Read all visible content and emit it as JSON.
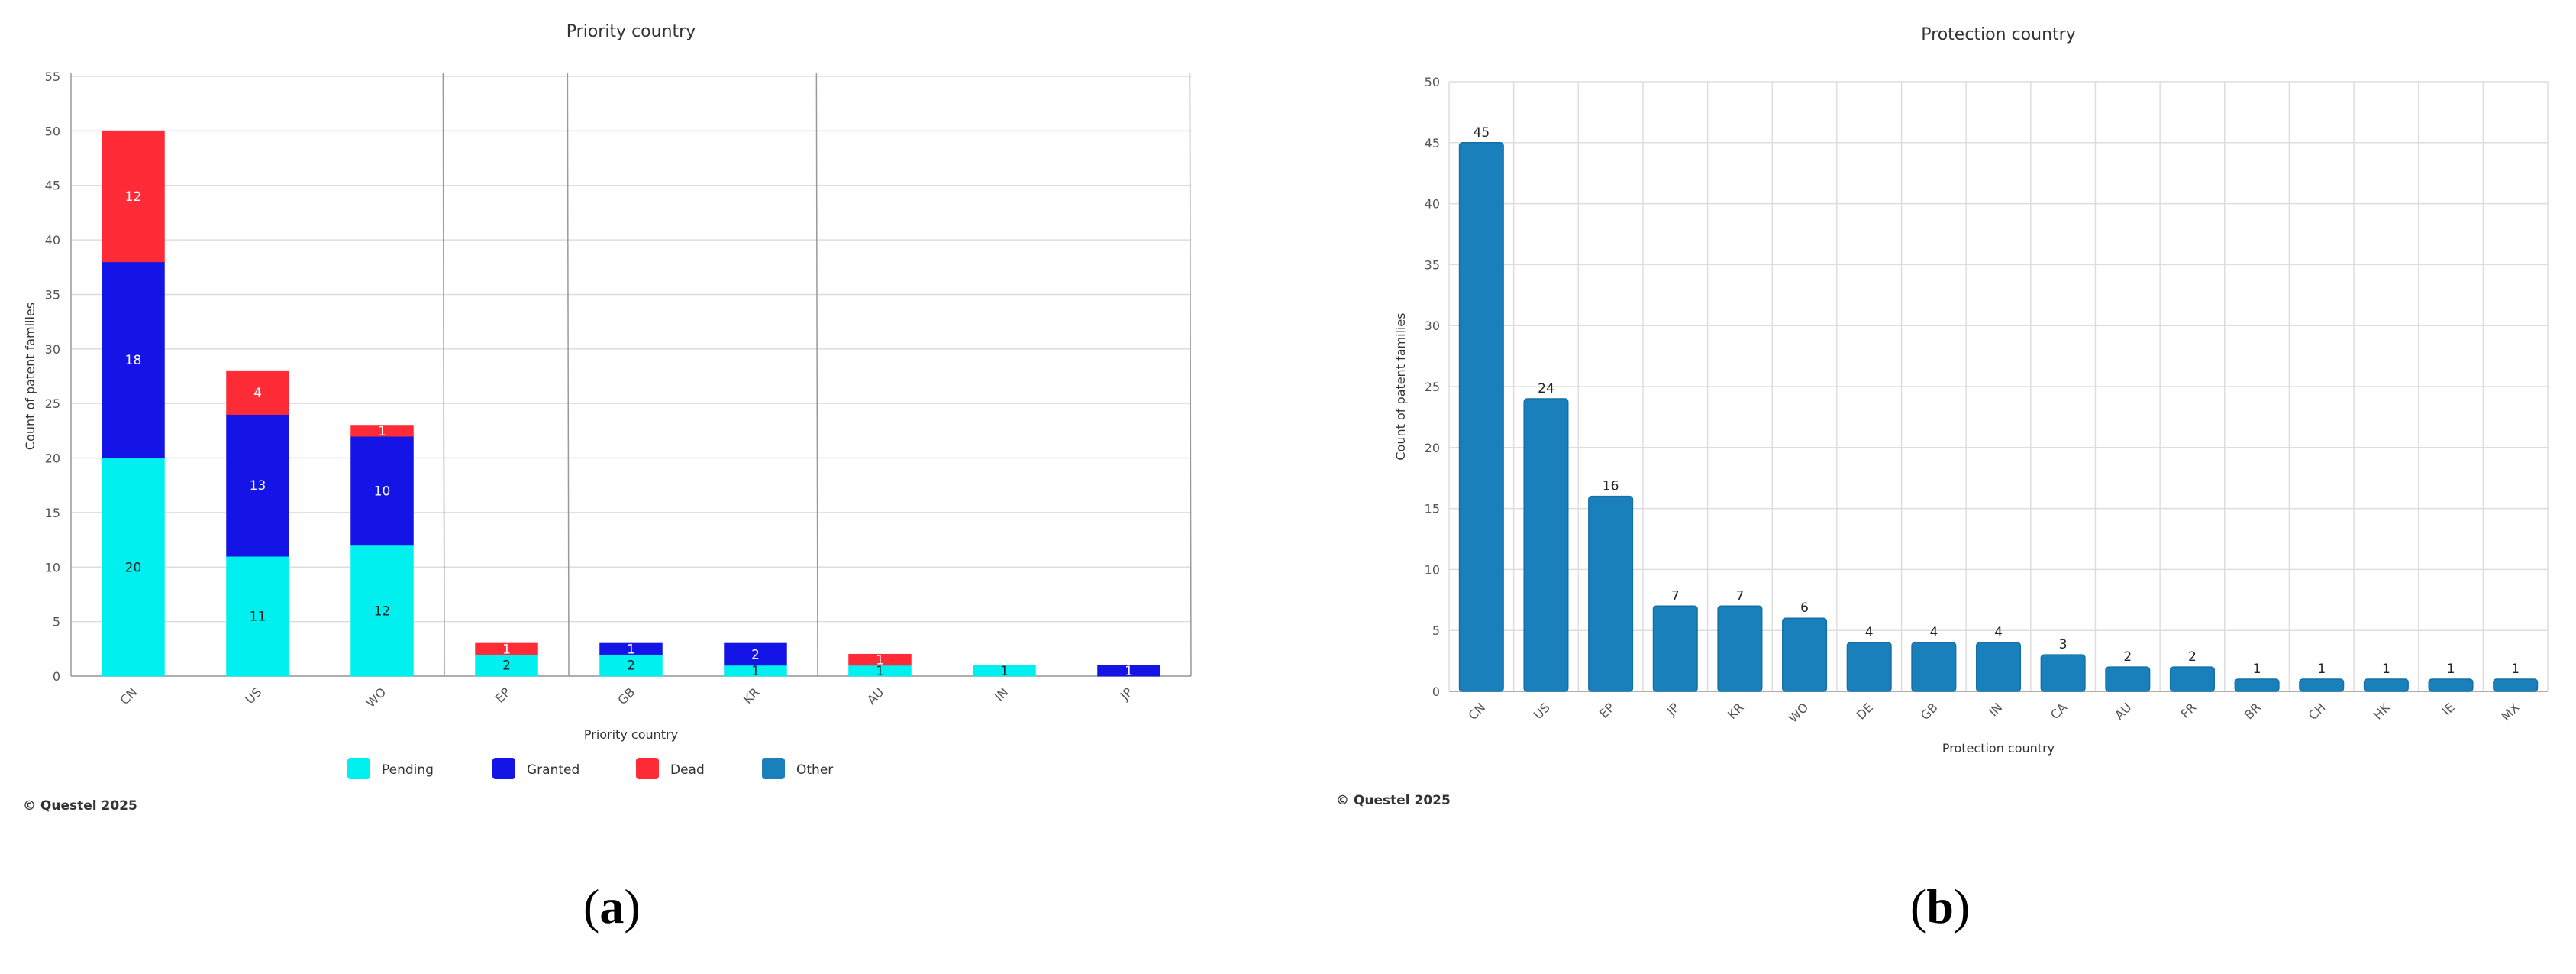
{
  "colors": {
    "pending": "#00f0f0",
    "granted": "#1414e6",
    "dead": "#ff2b36",
    "other": "#1a80bc",
    "bar_b": "#1a80bc",
    "grid": "#dddddd",
    "vgrid_dark": "#999999"
  },
  "panel_a": {
    "copyright": "© Questel 2025",
    "caption_open": "(",
    "caption_letter": "a",
    "caption_close": ")"
  },
  "panel_b": {
    "copyright": "© Questel 2025",
    "caption_open": "(",
    "caption_letter": "b",
    "caption_close": ")"
  },
  "chart_data": [
    {
      "type": "bar",
      "stacked": true,
      "title": "Priority country",
      "xlabel": "Priority country",
      "ylabel": "Count of patent families",
      "ylim": [
        0,
        55
      ],
      "yticks": [
        0,
        5,
        10,
        15,
        20,
        25,
        30,
        35,
        40,
        45,
        50,
        55
      ],
      "grid": true,
      "legend_position": "bottom",
      "categories": [
        "CN",
        "US",
        "WO",
        "EP",
        "GB",
        "KR",
        "AU",
        "IN",
        "JP"
      ],
      "series": [
        {
          "name": "Pending",
          "values": [
            20,
            11,
            12,
            2,
            2,
            1,
            1,
            1,
            0
          ]
        },
        {
          "name": "Granted",
          "values": [
            18,
            13,
            10,
            0,
            1,
            2,
            0,
            0,
            1
          ]
        },
        {
          "name": "Dead",
          "values": [
            12,
            4,
            1,
            1,
            0,
            0,
            1,
            0,
            0
          ]
        },
        {
          "name": "Other",
          "values": [
            0,
            0,
            0,
            0,
            0,
            0,
            0,
            0,
            0
          ]
        }
      ]
    },
    {
      "type": "bar",
      "title": "Protection country",
      "xlabel": "Protection country",
      "ylabel": "Count of patent families",
      "ylim": [
        0,
        50
      ],
      "yticks": [
        0,
        5,
        10,
        15,
        20,
        25,
        30,
        35,
        40,
        45,
        50
      ],
      "grid": true,
      "categories": [
        "CN",
        "US",
        "EP",
        "JP",
        "KR",
        "WO",
        "DE",
        "GB",
        "IN",
        "CA",
        "AU",
        "FR",
        "BR",
        "CH",
        "HK",
        "IE",
        "MX"
      ],
      "values": [
        45,
        24,
        16,
        7,
        7,
        6,
        4,
        4,
        4,
        3,
        2,
        2,
        1,
        1,
        1,
        1,
        1
      ]
    }
  ]
}
